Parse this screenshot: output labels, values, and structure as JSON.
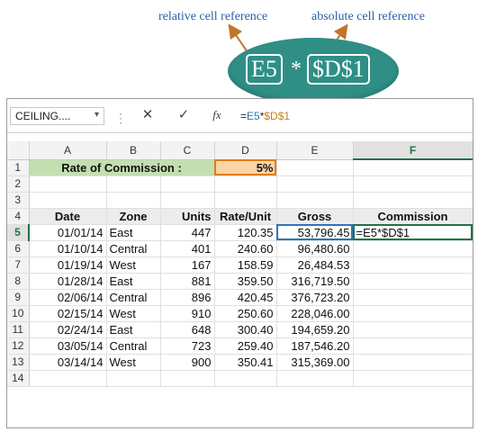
{
  "annotation": {
    "relative_label": "relative cell reference",
    "absolute_label": "absolute cell reference",
    "relative_token": "E5",
    "operator": "*",
    "absolute_token": "$D$1",
    "bubble_color": "#2f8f86",
    "label_color": "#2b5fa8"
  },
  "formula_bar": {
    "name_box": "CEILING....",
    "name_box_chevron": "▾",
    "separator": "⋮",
    "cancel_icon": "✕",
    "enter_icon": "✓",
    "function_icon": "fx",
    "formula_prefix": "=",
    "formula_relative": "E5",
    "formula_operator": "*",
    "formula_absolute": "$D$1"
  },
  "columns": [
    "A",
    "B",
    "C",
    "D",
    "E",
    "F"
  ],
  "rows_numbers": [
    "1",
    "2",
    "3",
    "4",
    "5",
    "6",
    "7",
    "8",
    "9",
    "10",
    "11",
    "12",
    "13",
    "14"
  ],
  "sheet": {
    "rate_label": "Rate of Commission :",
    "rate_value": "5%",
    "headers": [
      "Date",
      "Zone",
      "Units",
      "Rate/Unit",
      "Gross",
      "Commission"
    ],
    "data": [
      {
        "date": "01/01/14",
        "zone": "East",
        "units": "447",
        "rate": "120.35",
        "gross": "53,796.45",
        "commission": "=E5*$D$1"
      },
      {
        "date": "01/10/14",
        "zone": "Central",
        "units": "401",
        "rate": "240.60",
        "gross": "96,480.60",
        "commission": ""
      },
      {
        "date": "01/19/14",
        "zone": "West",
        "units": "167",
        "rate": "158.59",
        "gross": "26,484.53",
        "commission": ""
      },
      {
        "date": "01/28/14",
        "zone": "East",
        "units": "881",
        "rate": "359.50",
        "gross": "316,719.50",
        "commission": ""
      },
      {
        "date": "02/06/14",
        "zone": "Central",
        "units": "896",
        "rate": "420.45",
        "gross": "376,723.20",
        "commission": ""
      },
      {
        "date": "02/15/14",
        "zone": "West",
        "units": "910",
        "rate": "250.60",
        "gross": "228,046.00",
        "commission": ""
      },
      {
        "date": "02/24/14",
        "zone": "East",
        "units": "648",
        "rate": "300.40",
        "gross": "194,659.20",
        "commission": ""
      },
      {
        "date": "03/05/14",
        "zone": "Central",
        "units": "723",
        "rate": "259.40",
        "gross": "187,546.20",
        "commission": ""
      },
      {
        "date": "03/14/14",
        "zone": "West",
        "units": "900",
        "rate": "350.41",
        "gross": "315,369.00",
        "commission": ""
      }
    ]
  },
  "selection": {
    "active_cell": "F5",
    "accent_color": "#217346"
  }
}
